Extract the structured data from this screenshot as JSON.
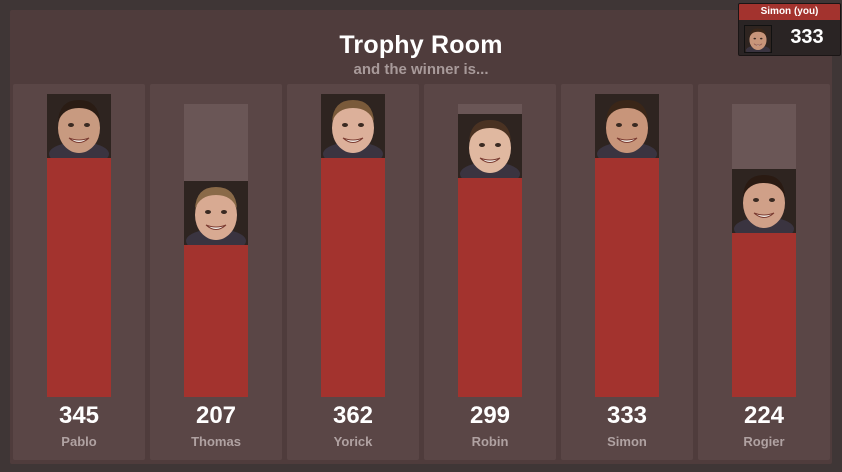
{
  "header": {
    "title": "Trophy Room",
    "subtitle": "and the winner is..."
  },
  "you": {
    "label": "Simon (you)",
    "score": "333"
  },
  "players": [
    {
      "name": "Pablo",
      "score": "345",
      "value": 345,
      "skin": "#c89a80",
      "hair": "#2a1c14"
    },
    {
      "name": "Thomas",
      "score": "207",
      "value": 207,
      "skin": "#d8aa92",
      "hair": "#8a6a48"
    },
    {
      "name": "Yorick",
      "score": "362",
      "value": 362,
      "skin": "#dcb09a",
      "hair": "#7a5a3a"
    },
    {
      "name": "Robin",
      "score": "299",
      "value": 299,
      "skin": "#e0b8a0",
      "hair": "#4a3222"
    },
    {
      "name": "Simon",
      "score": "333",
      "value": 333,
      "skin": "#c8957a",
      "hair": "#3a2618"
    },
    {
      "name": "Rogier",
      "score": "224",
      "value": 224,
      "skin": "#d0a088",
      "hair": "#2a1a12"
    }
  ],
  "max_value": 400,
  "colors": {
    "bar": "#a3332e",
    "track": "#6a5656",
    "panel": "#5a4646",
    "board": "#4f3c3c",
    "accent_label": "#a3332e"
  }
}
